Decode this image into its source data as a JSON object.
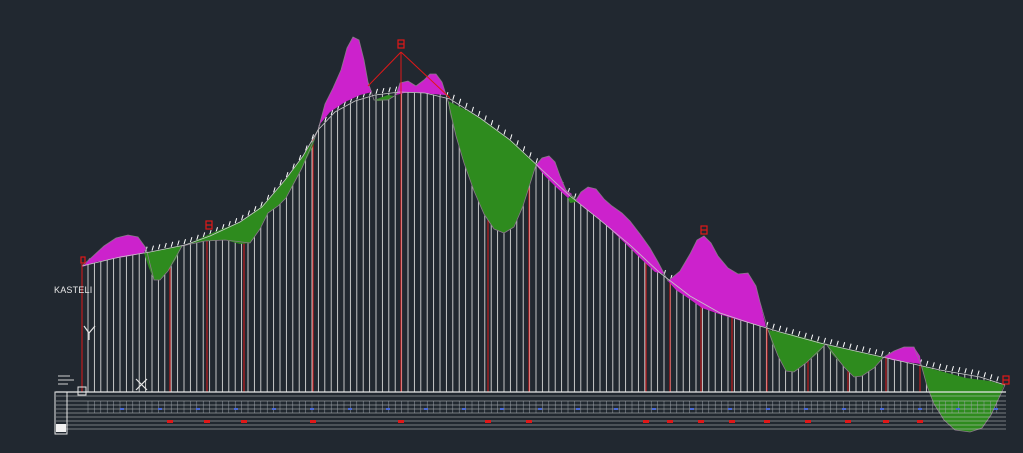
{
  "drawing": {
    "station_label": "KASTELI",
    "colors": {
      "background": "#212830",
      "fill_cut": "#cc22cc",
      "fill_fill": "#2e8b1e",
      "verticals": "#d8d8d8",
      "red_lines": "#e01818",
      "table_lines": "#cfcfcf",
      "markers": "#e01818"
    },
    "icons": {
      "origin_marker": "y-axis-icon",
      "cross_marker": "x-axis-icon",
      "vertex_flag": "flag-marker-icon"
    }
  }
}
